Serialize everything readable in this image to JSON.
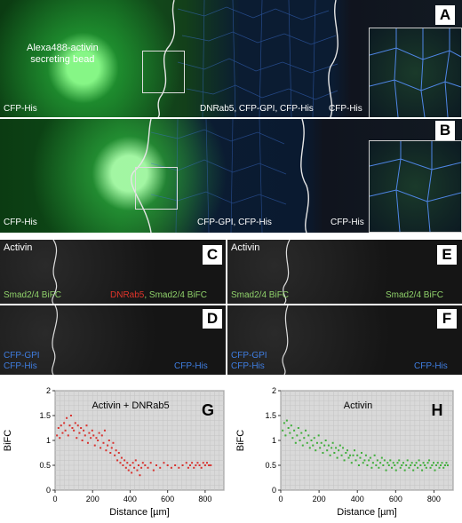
{
  "panel_a": {
    "letter": "A",
    "bead_label": "Alexa488-activin\nsecreting bead",
    "left_label": "CFP-His",
    "middle_label": "DNRab5, CFP-GPI, CFP-His",
    "right_label": "CFP-His"
  },
  "panel_b": {
    "letter": "B",
    "left_label": "CFP-His",
    "middle_label": "CFP-GPI, CFP-His",
    "right_label": "CFP-His"
  },
  "panel_c": {
    "letter": "C",
    "top_label": "Activin",
    "left_label": "Smad2/4 BiFC",
    "right_red": "DNRab5",
    "right_green": ", Smad2/4 BiFC"
  },
  "panel_d": {
    "letter": "D",
    "left_label_1": "CFP-GPI",
    "left_label_2": "CFP-His",
    "right_label": "CFP-His"
  },
  "panel_e": {
    "letter": "E",
    "top_label": "Activin",
    "left_label": "Smad2/4 BiFC",
    "right_label": "Smad2/4 BiFC"
  },
  "panel_f": {
    "letter": "F",
    "left_label_1": "CFP-GPI",
    "left_label_2": "CFP-His",
    "right_label": "CFP-His"
  },
  "chart_data": [
    {
      "type": "scatter",
      "panel": "G",
      "title": "Activin + DNRab5",
      "xlabel": "Distance [µm]",
      "ylabel": "BiFC",
      "xlim": [
        0,
        900
      ],
      "ylim": [
        0,
        2
      ],
      "xticks": [
        "0",
        "200",
        "400",
        "600",
        "800"
      ],
      "yticks": [
        "0",
        "0.5",
        "1",
        "1.5",
        "2"
      ],
      "color": "#d8322e",
      "grid": true,
      "points": [
        [
          10,
          1.1
        ],
        [
          18,
          1.25
        ],
        [
          25,
          1.05
        ],
        [
          32,
          1.3
        ],
        [
          40,
          1.15
        ],
        [
          48,
          1.35
        ],
        [
          55,
          1.2
        ],
        [
          62,
          1.45
        ],
        [
          70,
          1.1
        ],
        [
          78,
          1.3
        ],
        [
          85,
          1.5
        ],
        [
          92,
          1.25
        ],
        [
          100,
          1.2
        ],
        [
          108,
          1.35
        ],
        [
          115,
          1.05
        ],
        [
          122,
          1.3
        ],
        [
          130,
          1.15
        ],
        [
          138,
          1.25
        ],
        [
          145,
          1.0
        ],
        [
          152,
          1.2
        ],
        [
          160,
          1.1
        ],
        [
          168,
          1.3
        ],
        [
          175,
          0.95
        ],
        [
          182,
          1.15
        ],
        [
          190,
          1.05
        ],
        [
          198,
          1.2
        ],
        [
          205,
          1.1
        ],
        [
          212,
          0.9
        ],
        [
          220,
          1.05
        ],
        [
          228,
          1.0
        ],
        [
          235,
          1.15
        ],
        [
          242,
          0.85
        ],
        [
          250,
          1.1
        ],
        [
          258,
          0.95
        ],
        [
          265,
          1.2
        ],
        [
          272,
          0.8
        ],
        [
          280,
          0.9
        ],
        [
          288,
          1.0
        ],
        [
          295,
          0.75
        ],
        [
          302,
          0.85
        ],
        [
          310,
          0.95
        ],
        [
          318,
          0.7
        ],
        [
          325,
          0.8
        ],
        [
          332,
          0.6
        ],
        [
          340,
          0.75
        ],
        [
          348,
          0.55
        ],
        [
          355,
          0.65
        ],
        [
          362,
          0.5
        ],
        [
          370,
          0.6
        ],
        [
          378,
          0.45
        ],
        [
          385,
          0.55
        ],
        [
          392,
          0.4
        ],
        [
          400,
          0.5
        ],
        [
          408,
          0.35
        ],
        [
          415,
          0.55
        ],
        [
          422,
          0.45
        ],
        [
          430,
          0.6
        ],
        [
          438,
          0.4
        ],
        [
          445,
          0.5
        ],
        [
          452,
          0.3
        ],
        [
          460,
          0.45
        ],
        [
          468,
          0.55
        ],
        [
          480,
          0.5
        ],
        [
          495,
          0.45
        ],
        [
          510,
          0.55
        ],
        [
          525,
          0.4
        ],
        [
          540,
          0.5
        ],
        [
          560,
          0.45
        ],
        [
          580,
          0.55
        ],
        [
          600,
          0.5
        ],
        [
          620,
          0.45
        ],
        [
          640,
          0.5
        ],
        [
          660,
          0.45
        ],
        [
          680,
          0.5
        ],
        [
          700,
          0.55
        ],
        [
          710,
          0.45
        ],
        [
          720,
          0.5
        ],
        [
          730,
          0.55
        ],
        [
          740,
          0.45
        ],
        [
          750,
          0.5
        ],
        [
          760,
          0.55
        ],
        [
          770,
          0.5
        ],
        [
          780,
          0.45
        ],
        [
          790,
          0.55
        ],
        [
          800,
          0.5
        ],
        [
          810,
          0.55
        ],
        [
          820,
          0.5
        ],
        [
          830,
          0.5
        ]
      ]
    },
    {
      "type": "scatter",
      "panel": "H",
      "title": "Activin",
      "xlabel": "Distance [µm]",
      "ylabel": "BiFC",
      "xlim": [
        0,
        900
      ],
      "ylim": [
        0,
        2
      ],
      "xticks": [
        "0",
        "200",
        "400",
        "600",
        "800"
      ],
      "yticks": [
        "0",
        "0.5",
        "1",
        "1.5",
        "2"
      ],
      "color": "#3fae3a",
      "grid": true,
      "points": [
        [
          10,
          1.2
        ],
        [
          18,
          1.35
        ],
        [
          25,
          1.1
        ],
        [
          32,
          1.4
        ],
        [
          40,
          1.25
        ],
        [
          48,
          1.15
        ],
        [
          55,
          1.3
        ],
        [
          62,
          1.05
        ],
        [
          70,
          1.2
        ],
        [
          78,
          0.95
        ],
        [
          85,
          1.1
        ],
        [
          92,
          1.25
        ],
        [
          100,
          1.0
        ],
        [
          108,
          1.15
        ],
        [
          115,
          0.9
        ],
        [
          122,
          1.05
        ],
        [
          130,
          1.2
        ],
        [
          138,
          0.95
        ],
        [
          145,
          1.1
        ],
        [
          152,
          0.85
        ],
        [
          160,
          1.0
        ],
        [
          168,
          0.9
        ],
        [
          175,
          1.05
        ],
        [
          182,
          0.8
        ],
        [
          190,
          0.95
        ],
        [
          198,
          1.1
        ],
        [
          205,
          0.85
        ],
        [
          212,
          0.95
        ],
        [
          220,
          0.75
        ],
        [
          228,
          0.9
        ],
        [
          235,
          1.0
        ],
        [
          242,
          0.8
        ],
        [
          250,
          0.9
        ],
        [
          258,
          0.7
        ],
        [
          265,
          0.85
        ],
        [
          272,
          0.95
        ],
        [
          280,
          0.75
        ],
        [
          288,
          0.85
        ],
        [
          295,
          0.65
        ],
        [
          302,
          0.8
        ],
        [
          310,
          0.9
        ],
        [
          318,
          0.7
        ],
        [
          325,
          0.85
        ],
        [
          332,
          0.6
        ],
        [
          340,
          0.75
        ],
        [
          348,
          0.8
        ],
        [
          355,
          0.65
        ],
        [
          362,
          0.7
        ],
        [
          370,
          0.55
        ],
        [
          378,
          0.7
        ],
        [
          385,
          0.8
        ],
        [
          392,
          0.6
        ],
        [
          400,
          0.7
        ],
        [
          408,
          0.5
        ],
        [
          415,
          0.65
        ],
        [
          422,
          0.75
        ],
        [
          430,
          0.55
        ],
        [
          438,
          0.6
        ],
        [
          445,
          0.7
        ],
        [
          452,
          0.5
        ],
        [
          460,
          0.6
        ],
        [
          468,
          0.65
        ],
        [
          475,
          0.45
        ],
        [
          482,
          0.55
        ],
        [
          490,
          0.7
        ],
        [
          498,
          0.5
        ],
        [
          505,
          0.6
        ],
        [
          512,
          0.45
        ],
        [
          520,
          0.55
        ],
        [
          528,
          0.65
        ],
        [
          535,
          0.5
        ],
        [
          542,
          0.6
        ],
        [
          550,
          0.4
        ],
        [
          558,
          0.55
        ],
        [
          565,
          0.5
        ],
        [
          572,
          0.6
        ],
        [
          580,
          0.45
        ],
        [
          588,
          0.55
        ],
        [
          595,
          0.5
        ],
        [
          602,
          0.4
        ],
        [
          610,
          0.55
        ],
        [
          618,
          0.6
        ],
        [
          625,
          0.45
        ],
        [
          632,
          0.5
        ],
        [
          640,
          0.55
        ],
        [
          648,
          0.4
        ],
        [
          655,
          0.5
        ],
        [
          662,
          0.6
        ],
        [
          670,
          0.45
        ],
        [
          678,
          0.5
        ],
        [
          685,
          0.55
        ],
        [
          692,
          0.4
        ],
        [
          700,
          0.5
        ],
        [
          708,
          0.55
        ],
        [
          715,
          0.45
        ],
        [
          722,
          0.6
        ],
        [
          730,
          0.5
        ],
        [
          738,
          0.4
        ],
        [
          745,
          0.55
        ],
        [
          752,
          0.5
        ],
        [
          760,
          0.45
        ],
        [
          768,
          0.55
        ],
        [
          775,
          0.6
        ],
        [
          782,
          0.45
        ],
        [
          790,
          0.5
        ],
        [
          798,
          0.55
        ],
        [
          805,
          0.4
        ],
        [
          812,
          0.5
        ],
        [
          820,
          0.55
        ],
        [
          828,
          0.45
        ],
        [
          835,
          0.5
        ],
        [
          842,
          0.55
        ],
        [
          850,
          0.45
        ],
        [
          858,
          0.5
        ],
        [
          865,
          0.55
        ],
        [
          872,
          0.5
        ]
      ]
    }
  ]
}
